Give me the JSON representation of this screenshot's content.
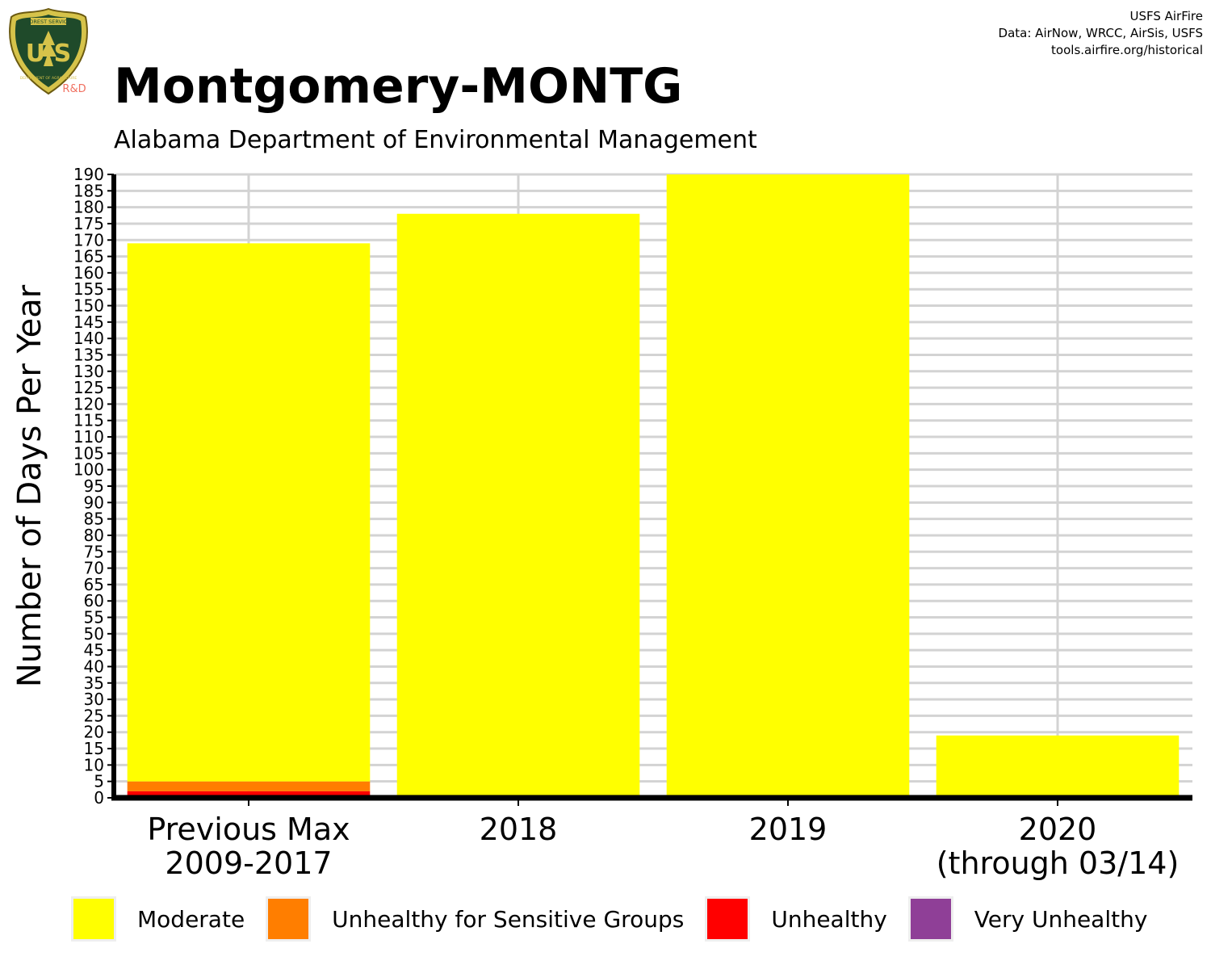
{
  "header": {
    "title": "Montgomery-MONTG",
    "subtitle": "Alabama Department of Environmental Management",
    "credits": [
      "USFS AirFire",
      "Data: AirNow, WRCC, AirSis, USFS",
      "tools.airfire.org/historical"
    ]
  },
  "logo": {
    "top_text": "FOREST SERVICE",
    "letters": "U S",
    "bottom_text": "DEPARTMENT OF AGRICULTURE",
    "tag": "R&D"
  },
  "colors": {
    "moderate": "#ffff00",
    "usg": "#ff7e00",
    "unhealthy": "#ff0000",
    "very_unhealthy": "#8f3f97",
    "grid": "#d3d3d3",
    "axis": "#000000"
  },
  "chart_data": {
    "type": "bar",
    "stacked": true,
    "title": "Montgomery-MONTG",
    "subtitle": "Alabama Department of Environmental Management",
    "xlabel": "",
    "ylabel": "Number of Days Per Year",
    "ylim": [
      0,
      190
    ],
    "ytick_step": 5,
    "grid": true,
    "legend_position": "bottom",
    "categories": [
      [
        "Previous Max",
        "2009-2017"
      ],
      [
        "2018"
      ],
      [
        "2019"
      ],
      [
        "2020",
        "(through 03/14)"
      ]
    ],
    "series": [
      {
        "name": "Unhealthy",
        "color_key": "unhealthy",
        "values": [
          2,
          0,
          0,
          0
        ]
      },
      {
        "name": "Unhealthy for Sensitive Groups",
        "color_key": "usg",
        "values": [
          3,
          0,
          0,
          0
        ]
      },
      {
        "name": "Moderate",
        "color_key": "moderate",
        "values": [
          164,
          178,
          190,
          19
        ]
      },
      {
        "name": "Very Unhealthy",
        "color_key": "very_unhealthy",
        "values": [
          0,
          0,
          0,
          0
        ]
      }
    ],
    "legend": [
      {
        "label": "Moderate",
        "color_key": "moderate"
      },
      {
        "label": "Unhealthy for Sensitive Groups",
        "color_key": "usg"
      },
      {
        "label": "Unhealthy",
        "color_key": "unhealthy"
      },
      {
        "label": "Very Unhealthy",
        "color_key": "very_unhealthy"
      }
    ]
  }
}
